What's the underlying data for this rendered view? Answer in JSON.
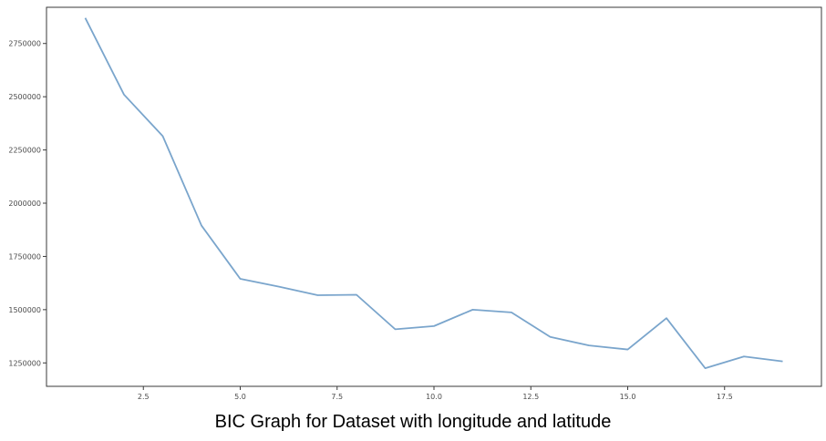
{
  "caption": "BIC Graph for Dataset with longitude and latitude",
  "chart_data": {
    "type": "line",
    "title": "",
    "xlabel": "",
    "ylabel": "",
    "xlim": [
      0.0,
      20.0
    ],
    "ylim": [
      1140000,
      2920000
    ],
    "xticks": [
      2.5,
      5.0,
      7.5,
      10.0,
      12.5,
      15.0,
      17.5
    ],
    "xtick_labels": [
      "2.5",
      "5.0",
      "7.5",
      "10.0",
      "12.5",
      "15.0",
      "17.5"
    ],
    "yticks": [
      1250000,
      1500000,
      1750000,
      2000000,
      2250000,
      2500000,
      2750000
    ],
    "ytick_labels": [
      "1250000",
      "1500000",
      "1750000",
      "2000000",
      "2250000",
      "2500000",
      "2750000"
    ],
    "grid": false,
    "series": [
      {
        "color": "#7aa5cc",
        "x": [
          1,
          2,
          3,
          4,
          5,
          6,
          7,
          8,
          9,
          10,
          11,
          12,
          13,
          14,
          15,
          16,
          17,
          18,
          19
        ],
        "y": [
          2870000,
          2510000,
          2315000,
          1895000,
          1645000,
          1608000,
          1568000,
          1570000,
          1408000,
          1423000,
          1500000,
          1487000,
          1372000,
          1332000,
          1313000,
          1460000,
          1225000,
          1280000,
          1257000
        ]
      }
    ]
  }
}
